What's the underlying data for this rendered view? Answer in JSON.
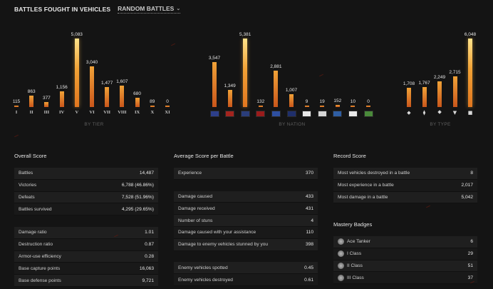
{
  "header": {
    "title": "BATTLES FOUGHT IN VEHICLES",
    "filter": "RANDOM BATTLES"
  },
  "colors": {
    "bar_top": "#ffe38a",
    "bar_mid": "#f0a238",
    "bar_low": "#c9561b",
    "background": "#141414"
  },
  "chart_data": [
    {
      "type": "bar",
      "caption": "BY TIER",
      "categories": [
        "I",
        "II",
        "III",
        "IV",
        "V",
        "VI",
        "VII",
        "VIII",
        "IX",
        "X",
        "XI"
      ],
      "values": [
        115,
        863,
        377,
        1156,
        5083,
        3040,
        1477,
        1607,
        680,
        89,
        0
      ],
      "value_labels": [
        "115",
        "863",
        "377",
        "1,156",
        "5,083",
        "3,040",
        "1,477",
        "1,607",
        "680",
        "89",
        "0"
      ]
    },
    {
      "type": "bar",
      "caption": "BY NATION",
      "categories": [
        "usa",
        "china",
        "uk",
        "ussr",
        "france",
        "uk-commonwealth",
        "japan",
        "czech",
        "sweden",
        "poland",
        "italy"
      ],
      "values": [
        3547,
        1349,
        5381,
        132,
        2881,
        1007,
        9,
        19,
        152,
        10,
        0
      ],
      "value_labels": [
        "3,547",
        "1,349",
        "5,381",
        "132",
        "2,881",
        "1,007",
        "9",
        "19",
        "152",
        "10",
        "0"
      ]
    },
    {
      "type": "bar",
      "caption": "BY TYPE",
      "categories": [
        "light-tank-icon",
        "medium-tank-icon",
        "heavy-tank-icon",
        "td-icon",
        "spg-icon"
      ],
      "values": [
        1708,
        1767,
        2249,
        2715,
        6048
      ],
      "value_labels": [
        "1,708",
        "1,767",
        "2,249",
        "2,715",
        "6,048"
      ]
    }
  ],
  "nation_flag_colors": [
    "#2d3f8a",
    "#a3241e",
    "#2a3d7a",
    "#9a1c1c",
    "#2e4fa0",
    "#1f2f6b",
    "#e8e8e8",
    "#d5d5d5",
    "#2f5ea3",
    "#e9e9e9",
    "#4a8a3a"
  ],
  "type_glyphs": [
    "◆",
    "⧫",
    "⯁",
    "▼",
    "■"
  ],
  "overall": {
    "title": "Overall Score",
    "rows": [
      {
        "label": "Battles",
        "value": "14,487"
      },
      {
        "label": "Victories",
        "value": "6,788 (46.86%)"
      },
      {
        "label": "Defeats",
        "value": "7,528 (51.96%)"
      },
      {
        "label": "Battles survived",
        "value": "4,295 (29.65%)"
      },
      {
        "label": "Damage ratio",
        "value": "1.01"
      },
      {
        "label": "Destruction ratio",
        "value": "0.87"
      },
      {
        "label": "Armor-use efficiency",
        "value": "0.28"
      },
      {
        "label": "Base capture points",
        "value": "16,063"
      },
      {
        "label": "Base defense points",
        "value": "9,721"
      }
    ]
  },
  "average": {
    "title": "Average Score per Battle",
    "rows": [
      {
        "label": "Experience",
        "value": "370"
      },
      {
        "label": "Damage caused",
        "value": "433"
      },
      {
        "label": "Damage received",
        "value": "431"
      },
      {
        "label": "Number of stuns",
        "value": "4"
      },
      {
        "label": "Damage caused with your assistance",
        "value": "110"
      },
      {
        "label": "Damage to enemy vehicles stunned by you",
        "value": "398"
      },
      {
        "label": "Enemy vehicles spotted",
        "value": "0.45"
      },
      {
        "label": "Enemy vehicles destroyed",
        "value": "0.61"
      }
    ]
  },
  "record": {
    "title": "Record Score",
    "rows": [
      {
        "label": "Most vehicles destroyed in a battle",
        "value": "8"
      },
      {
        "label": "Most experience in a battle",
        "value": "2,017"
      },
      {
        "label": "Most damage in a battle",
        "value": "5,042"
      }
    ]
  },
  "mastery": {
    "title": "Mastery Badges",
    "rows": [
      {
        "label": "Ace Tanker",
        "value": "6"
      },
      {
        "label": "I Class",
        "value": "29"
      },
      {
        "label": "II Class",
        "value": "51"
      },
      {
        "label": "III Class",
        "value": "37"
      }
    ]
  }
}
